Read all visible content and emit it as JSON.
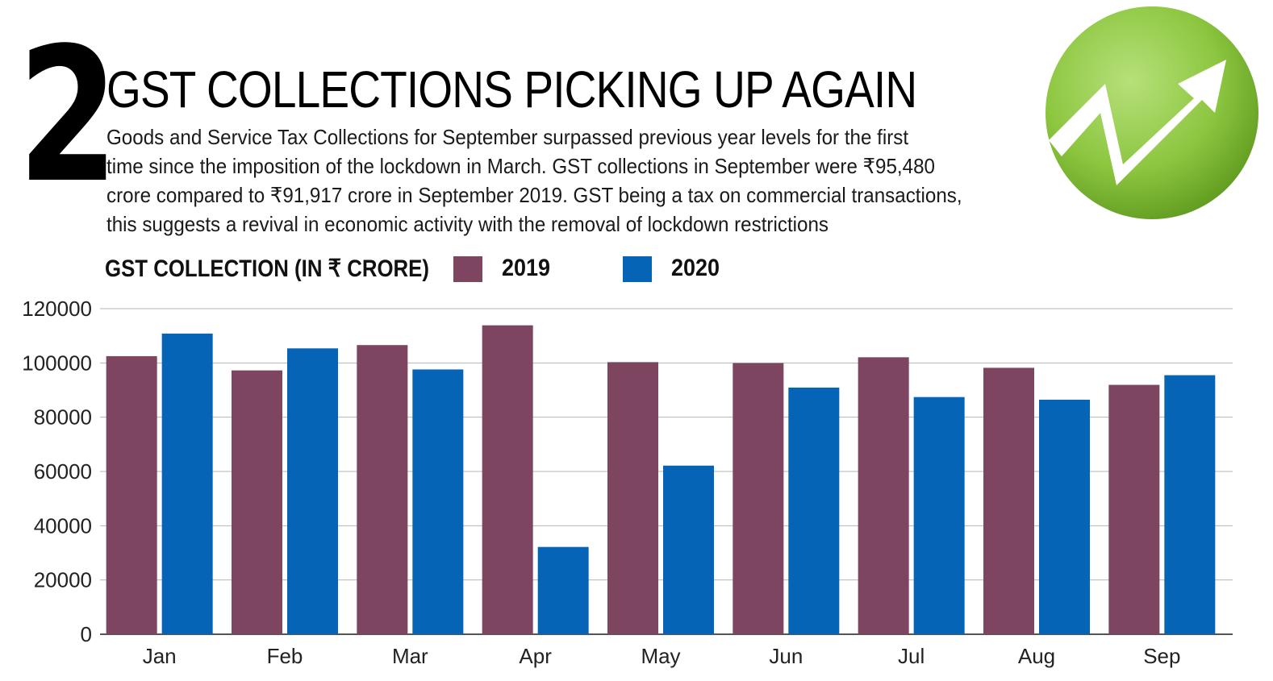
{
  "header": {
    "number": "2",
    "title": "GST COLLECTIONS PICKING UP AGAIN",
    "description_lines": [
      "Goods and Service Tax Collections for September surpassed previous year levels for the first",
      "time since the imposition of the lockdown in March. GST collections in September were ₹95,480",
      "crore compared to ₹91,917 crore in September 2019. GST being a tax on commercial transactions,",
      "this suggests a revival in economic activity with the removal of lockdown restrictions"
    ]
  },
  "logo": {
    "icon": "trend-up-arrow-icon",
    "circle_color": "#8cc63f",
    "arrow_color": "#ffffff"
  },
  "chart_data": {
    "type": "bar",
    "title": "GST COLLECTION (IN ₹ CRORE)",
    "xlabel": "",
    "ylabel": "",
    "categories": [
      "Jan",
      "Feb",
      "Mar",
      "Apr",
      "May",
      "Jun",
      "Jul",
      "Aug",
      "Sep"
    ],
    "series": [
      {
        "name": "2019",
        "color": "#7d4560",
        "values": [
          102503,
          97247,
          106577,
          113865,
          100289,
          99939,
          102083,
          98202,
          91917
        ]
      },
      {
        "name": "2020",
        "color": "#0564b5",
        "values": [
          110818,
          105361,
          97597,
          32172,
          62151,
          90917,
          87422,
          86449,
          95480
        ]
      }
    ],
    "ylim": [
      0,
      120000
    ],
    "yticks": [
      "0",
      "20000",
      "40000",
      "60000",
      "80000",
      "100000",
      "120000"
    ],
    "grid": true,
    "legend_position": "top-left"
  }
}
